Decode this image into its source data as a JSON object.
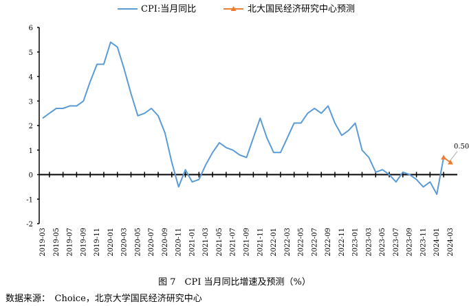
{
  "chart_data": {
    "type": "line",
    "title": "",
    "ylim": [
      -2,
      6
    ],
    "yticks": [
      "-2",
      "-1",
      "0",
      "1",
      "2",
      "3",
      "4",
      "5",
      "6"
    ],
    "x": [
      "2019-03",
      "2019-04",
      "2019-05",
      "2019-06",
      "2019-07",
      "2019-08",
      "2019-09",
      "2019-10",
      "2019-11",
      "2019-12",
      "2020-01",
      "2020-02",
      "2020-03",
      "2020-04",
      "2020-05",
      "2020-06",
      "2020-07",
      "2020-08",
      "2020-09",
      "2020-10",
      "2020-11",
      "2020-12",
      "2021-01",
      "2021-02",
      "2021-03",
      "2021-04",
      "2021-05",
      "2021-06",
      "2021-07",
      "2021-08",
      "2021-09",
      "2021-10",
      "2021-11",
      "2021-12",
      "2022-01",
      "2022-02",
      "2022-03",
      "2022-04",
      "2022-05",
      "2022-06",
      "2022-07",
      "2022-08",
      "2022-09",
      "2022-10",
      "2022-11",
      "2022-12",
      "2023-01",
      "2023-02",
      "2023-03",
      "2023-04",
      "2023-05",
      "2023-06",
      "2023-07",
      "2023-08",
      "2023-09",
      "2023-10",
      "2023-11",
      "2023-12",
      "2024-01",
      "2024-02",
      "2024-03"
    ],
    "series": [
      {
        "name": "CPI:当月同比",
        "color": "#5B9BD5",
        "values": [
          2.3,
          2.5,
          2.7,
          2.7,
          2.8,
          2.8,
          3.0,
          3.8,
          4.5,
          4.5,
          5.4,
          5.2,
          4.3,
          3.3,
          2.4,
          2.5,
          2.7,
          2.4,
          1.7,
          0.5,
          -0.5,
          0.2,
          -0.3,
          -0.2,
          0.4,
          0.9,
          1.3,
          1.1,
          1.0,
          0.8,
          0.7,
          1.5,
          2.3,
          1.5,
          0.9,
          0.9,
          1.5,
          2.1,
          2.1,
          2.5,
          2.7,
          2.5,
          2.8,
          2.1,
          1.6,
          1.8,
          2.1,
          1.0,
          0.7,
          0.1,
          0.2,
          0.0,
          -0.3,
          0.1,
          0.0,
          -0.2,
          -0.5,
          -0.3,
          -0.8,
          0.7,
          null
        ]
      },
      {
        "name": "北大国民经济研究中心预测",
        "color": "#ED7D31",
        "marker": "triangle",
        "values_from": "2024-02",
        "points": [
          [
            "2024-02",
            0.7
          ],
          [
            "2024-03",
            0.5
          ]
        ]
      }
    ],
    "annotations": [
      {
        "x": "2024-03",
        "text": "0.50"
      }
    ],
    "legend": "top"
  },
  "caption": "图 7　CPI 当月同比增速及预测（%）",
  "source": "数据来源：　Choice，北京大学国民经济研究中心"
}
